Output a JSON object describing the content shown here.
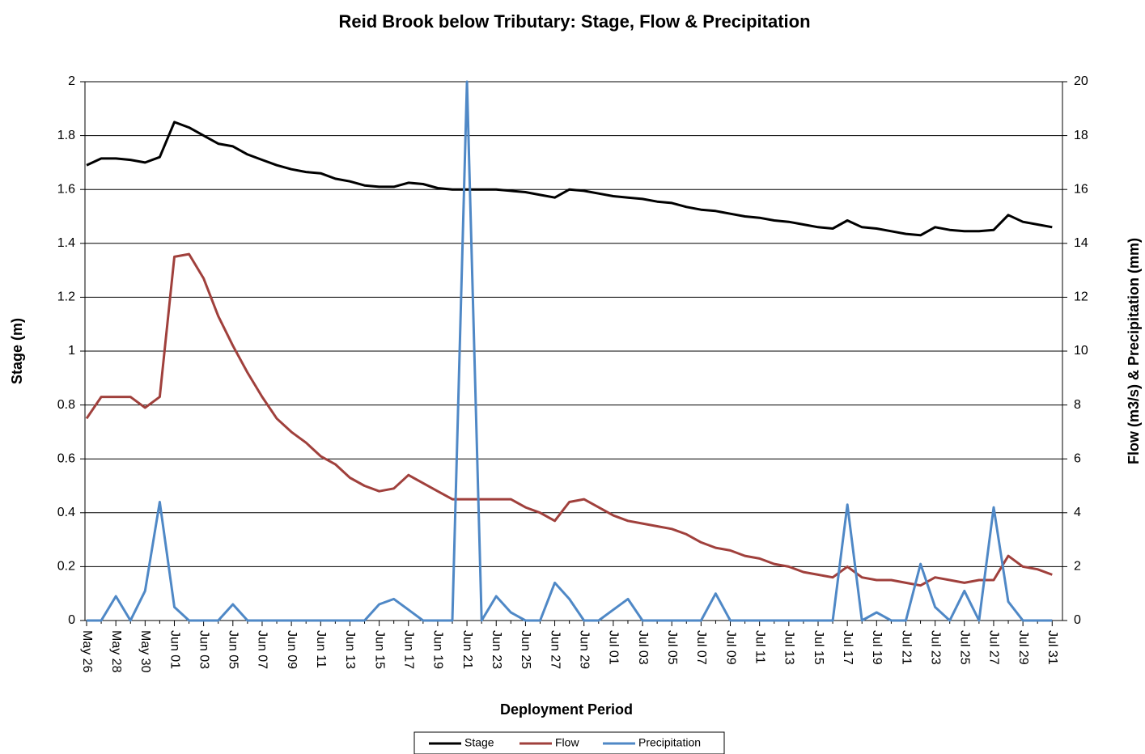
{
  "chart_data": {
    "type": "line",
    "title": "Reid Brook below Tributary:  Stage, Flow & Precipitation",
    "x_label": "Deployment Period",
    "y_label": "Stage (m)",
    "y2_label": "Flow (m3/s) & Precipitation (mm)",
    "categories": [
      "May 26",
      null,
      "May 28",
      null,
      "May 30",
      null,
      "Jun 01",
      null,
      "Jun 03",
      null,
      "Jun 05",
      null,
      "Jun 07",
      null,
      "Jun 09",
      null,
      "Jun 11",
      null,
      "Jun 13",
      null,
      "Jun 15",
      null,
      "Jun 17",
      null,
      "Jun 19",
      null,
      "Jun 21",
      null,
      "Jun 23",
      null,
      "Jun 25",
      null,
      "Jun 27",
      null,
      "Jun 29",
      null,
      "Jul 01",
      null,
      "Jul 03",
      null,
      "Jul 05",
      null,
      "Jul 07",
      null,
      "Jul 09",
      null,
      "Jul 11",
      null,
      "Jul 13",
      null,
      "Jul 15",
      null,
      "Jul 17",
      null,
      "Jul 19",
      null,
      "Jul 21",
      null,
      "Jul 23",
      null,
      "Jul 25",
      null,
      "Jul 27",
      null,
      "Jul 29",
      null,
      "Jul 31"
    ],
    "ylim": [
      0,
      2
    ],
    "yticks": [
      0,
      0.2,
      0.4,
      0.6,
      0.8,
      1,
      1.2,
      1.4,
      1.6,
      1.8,
      2
    ],
    "y2lim": [
      0,
      20
    ],
    "y2ticks": [
      0,
      2,
      4,
      6,
      8,
      10,
      12,
      14,
      16,
      18,
      20
    ],
    "grid": true,
    "legend": "bottom",
    "series": [
      {
        "name": "Stage",
        "color": "#000000",
        "values": [
          1.69,
          1.715,
          1.715,
          1.71,
          1.7,
          1.72,
          1.85,
          1.83,
          1.8,
          1.77,
          1.76,
          1.73,
          1.71,
          1.69,
          1.675,
          1.665,
          1.66,
          1.64,
          1.63,
          1.615,
          1.61,
          1.61,
          1.625,
          1.62,
          1.605,
          1.6,
          1.6,
          1.6,
          1.6,
          1.595,
          1.59,
          1.58,
          1.57,
          1.6,
          1.595,
          1.585,
          1.575,
          1.57,
          1.565,
          1.555,
          1.55,
          1.535,
          1.525,
          1.52,
          1.51,
          1.5,
          1.495,
          1.485,
          1.48,
          1.47,
          1.46,
          1.455,
          1.485,
          1.46,
          1.455,
          1.445,
          1.435,
          1.43,
          1.46,
          1.45,
          1.445,
          1.445,
          1.45,
          1.505,
          1.48,
          1.47,
          1.46
        ]
      },
      {
        "name": "Flow",
        "color": "#a0403c",
        "axis": "y2",
        "values": [
          7.5,
          8.3,
          8.3,
          8.3,
          7.9,
          8.3,
          13.5,
          13.6,
          12.7,
          11.3,
          10.2,
          9.2,
          8.3,
          7.5,
          7.0,
          6.6,
          6.1,
          5.8,
          5.3,
          5.0,
          4.8,
          4.9,
          5.4,
          5.1,
          4.8,
          4.5,
          4.5,
          4.5,
          4.5,
          4.5,
          4.2,
          4.0,
          3.7,
          4.4,
          4.5,
          4.2,
          3.9,
          3.7,
          3.6,
          3.5,
          3.4,
          3.2,
          2.9,
          2.7,
          2.6,
          2.4,
          2.3,
          2.1,
          2.0,
          1.8,
          1.7,
          1.6,
          2.0,
          1.6,
          1.5,
          1.5,
          1.4,
          1.3,
          1.6,
          1.5,
          1.4,
          1.5,
          1.5,
          2.4,
          2.0,
          1.9,
          1.7
        ]
      },
      {
        "name": "Precipitation",
        "color": "#4f88c6",
        "axis": "y2",
        "values": [
          0,
          0,
          0.9,
          0,
          1.1,
          4.4,
          0.5,
          0,
          0,
          0,
          0.6,
          0,
          0,
          0,
          0,
          0,
          0,
          0,
          0,
          0,
          0.6,
          0.8,
          0.4,
          0,
          0,
          0,
          20,
          0,
          0.9,
          0.3,
          0,
          0,
          1.4,
          0.8,
          0,
          0,
          0.4,
          0.8,
          0,
          0,
          0,
          0,
          0,
          1.0,
          0,
          0,
          0,
          0,
          0,
          0,
          0,
          0,
          4.3,
          0,
          0.3,
          0,
          0,
          2.1,
          0.5,
          0,
          1.1,
          0,
          4.2,
          0.7,
          0,
          0,
          0
        ]
      }
    ]
  }
}
